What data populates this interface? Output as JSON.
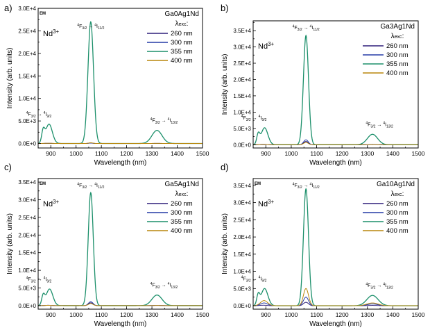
{
  "chart_data": [
    {
      "type": "line",
      "panel_label": "a)",
      "sample": "Ga0Ag1Nd",
      "ion": "Nd3+",
      "tag": "EM",
      "xlabel": "Wavelength (nm)",
      "ylabel": "Intensity (arb. units)",
      "xlim": [
        850,
        1500
      ],
      "ylim": [
        -1000,
        30000
      ],
      "xticks": [
        900,
        1000,
        1100,
        1200,
        1300,
        1400,
        1500
      ],
      "yticks": [
        0,
        5000,
        10000,
        15000,
        20000,
        25000,
        30000
      ],
      "ytick_labels": [
        "0.0E+0",
        "5.0E+3",
        "1.0E+4",
        "1.5E+4",
        "2.0E+4",
        "2.5E+4",
        "3.0E+4"
      ],
      "legend_title": "λexc:",
      "legend_placement": "top-right",
      "annotations": [
        {
          "text": "4F3/2 → 4I9/2",
          "x": 890
        },
        {
          "text": "4F3/2 → 4I11/2",
          "x": 1058
        },
        {
          "text": "4F3/2 → 4I13/2",
          "x": 1320
        }
      ],
      "series": [
        {
          "name": "260 nm",
          "color": "#2e1f7a",
          "peaks": [
            [
              890,
              20,
              15
            ],
            [
              1058,
              80,
              8
            ],
            [
              1320,
              10,
              20
            ]
          ]
        },
        {
          "name": "300 nm",
          "color": "#233aa6",
          "peaks": [
            [
              890,
              30,
              15
            ],
            [
              1058,
              120,
              8
            ],
            [
              1320,
              15,
              20
            ]
          ]
        },
        {
          "name": "355 nm",
          "color": "#1b8f6a",
          "peaks": [
            [
              870,
              2600,
              6
            ],
            [
              893,
              4300,
              13
            ],
            [
              1058,
              27000,
              11
            ],
            [
              1320,
              2900,
              20
            ]
          ]
        },
        {
          "name": "400 nm",
          "color": "#b8860b",
          "peaks": [
            [
              890,
              50,
              15
            ],
            [
              1058,
              150,
              8
            ],
            [
              1320,
              20,
              20
            ]
          ]
        }
      ]
    },
    {
      "type": "line",
      "panel_label": "b)",
      "sample": "Ga3Ag1Nd",
      "ion": "Nd3+",
      "xlabel": "Wavelength (nm)",
      "ylabel": "Intensity (arb. units)",
      "xlim": [
        850,
        1500
      ],
      "ylim": [
        -1000,
        38000
      ],
      "xticks": [
        900,
        1000,
        1100,
        1200,
        1300,
        1400,
        1500
      ],
      "yticks": [
        0,
        5000,
        10000,
        15000,
        20000,
        25000,
        30000,
        35000
      ],
      "ytick_labels": [
        "0.0E+0",
        "5.0E+3",
        "1.0E+4",
        "1.5E+4",
        "2.0E+4",
        "2.5E+4",
        "3.0E+4",
        "3.5E+4"
      ],
      "legend_title": "λexc:",
      "legend_placement": "top-right",
      "annotations": [
        {
          "text": "4F3/2 → 4I9/2",
          "x": 890
        },
        {
          "text": "4F3/2 → 4I11/2",
          "x": 1058
        },
        {
          "text": "4F3/2 → 4I13/2",
          "x": 1320
        }
      ],
      "series": [
        {
          "name": "260 nm",
          "color": "#2e1f7a",
          "peaks": [
            [
              890,
              100,
              15
            ],
            [
              1058,
              1000,
              9
            ],
            [
              1320,
              80,
              20
            ]
          ]
        },
        {
          "name": "300 nm",
          "color": "#233aa6",
          "peaks": [
            [
              890,
              150,
              15
            ],
            [
              1058,
              1500,
              9
            ],
            [
              1320,
              120,
              20
            ]
          ]
        },
        {
          "name": "355 nm",
          "color": "#1b8f6a",
          "peaks": [
            [
              870,
              3000,
              6
            ],
            [
              895,
              5200,
              13
            ],
            [
              1058,
              33500,
              10
            ],
            [
              1320,
              3200,
              20
            ]
          ]
        },
        {
          "name": "400 nm",
          "color": "#b8860b",
          "peaks": [
            [
              890,
              120,
              15
            ],
            [
              1058,
              700,
              9
            ],
            [
              1320,
              60,
              20
            ]
          ]
        }
      ]
    },
    {
      "type": "line",
      "panel_label": "c)",
      "sample": "Ga5Ag1Nd",
      "ion": "Nd3+",
      "tag": "EM",
      "xlabel": "Wavelength (nm)",
      "ylabel": "Intensity (arb. units)",
      "xlim": [
        850,
        1500
      ],
      "ylim": [
        -1000,
        36000
      ],
      "xticks": [
        900,
        1000,
        1100,
        1200,
        1300,
        1400,
        1500
      ],
      "yticks": [
        0,
        5000,
        10000,
        15000,
        20000,
        25000,
        30000,
        35000
      ],
      "ytick_labels": [
        "0.0E+0",
        "5.0E+3",
        "1.0E+4",
        "1.5E+4",
        "2.0E+4",
        "2.5E+4",
        "3.0E+4",
        "3.5E+4"
      ],
      "legend_title": "λexc:",
      "legend_placement": "top-right",
      "annotations": [
        {
          "text": "4F3/2 → 4I9/2",
          "x": 890
        },
        {
          "text": "4F3/2 → 4I11/2",
          "x": 1058
        },
        {
          "text": "4F3/2 → 4I13/2",
          "x": 1320
        }
      ],
      "series": [
        {
          "name": "260 nm",
          "color": "#2e1f7a",
          "peaks": [
            [
              890,
              80,
              15
            ],
            [
              1058,
              800,
              9
            ],
            [
              1320,
              60,
              20
            ]
          ]
        },
        {
          "name": "300 nm",
          "color": "#233aa6",
          "peaks": [
            [
              890,
              100,
              15
            ],
            [
              1058,
              1100,
              9
            ],
            [
              1320,
              80,
              20
            ]
          ]
        },
        {
          "name": "355 nm",
          "color": "#1b8f6a",
          "peaks": [
            [
              870,
              2700,
              6
            ],
            [
              895,
              4700,
              13
            ],
            [
              1058,
              32000,
              10
            ],
            [
              1320,
              3000,
              20
            ]
          ]
        },
        {
          "name": "400 nm",
          "color": "#b8860b",
          "peaks": [
            [
              890,
              90,
              15
            ],
            [
              1058,
              600,
              9
            ],
            [
              1320,
              50,
              20
            ]
          ]
        }
      ]
    },
    {
      "type": "line",
      "panel_label": "d)",
      "sample": "Ga10Ag1Nd",
      "ion": "Nd3+",
      "tag": "EM",
      "xlabel": "Wavelength (nm)",
      "ylabel": "Intensity (arb. units)",
      "xlim": [
        850,
        1500
      ],
      "ylim": [
        -1000,
        37000
      ],
      "xticks": [
        900,
        1000,
        1100,
        1200,
        1300,
        1400,
        1500
      ],
      "yticks": [
        0,
        5000,
        10000,
        15000,
        20000,
        25000,
        30000,
        35000
      ],
      "ytick_labels": [
        "0.0E+0",
        "5.0E+3",
        "1.0E+4",
        "1.5E+4",
        "2.0E+4",
        "2.5E+4",
        "3.0E+4",
        "3.5E+4"
      ],
      "legend_title": "λexc:",
      "legend_placement": "top-right",
      "annotations": [
        {
          "text": "4F3/2 → 4I9/2",
          "x": 890
        },
        {
          "text": "4F3/2 → 4I11/2",
          "x": 1058
        },
        {
          "text": "4F3/2 → 4I13/2",
          "x": 1320
        }
      ],
      "series": [
        {
          "name": "260 nm",
          "color": "#2e1f7a",
          "peaks": [
            [
              890,
              150,
              15
            ],
            [
              1058,
              1000,
              10
            ],
            [
              1320,
              100,
              22
            ]
          ]
        },
        {
          "name": "300 nm",
          "color": "#233aa6",
          "peaks": [
            [
              893,
              800,
              14
            ],
            [
              1058,
              2500,
              10
            ],
            [
              1320,
              500,
              22
            ]
          ]
        },
        {
          "name": "355 nm",
          "color": "#1b8f6a",
          "peaks": [
            [
              870,
              3000,
              6
            ],
            [
              895,
              5000,
              13
            ],
            [
              1058,
              34000,
              10
            ],
            [
              1320,
              3000,
              22
            ]
          ]
        },
        {
          "name": "400 nm",
          "color": "#b8860b",
          "peaks": [
            [
              893,
              1500,
              14
            ],
            [
              1058,
              5000,
              10
            ],
            [
              1320,
              800,
              22
            ]
          ]
        }
      ]
    }
  ]
}
